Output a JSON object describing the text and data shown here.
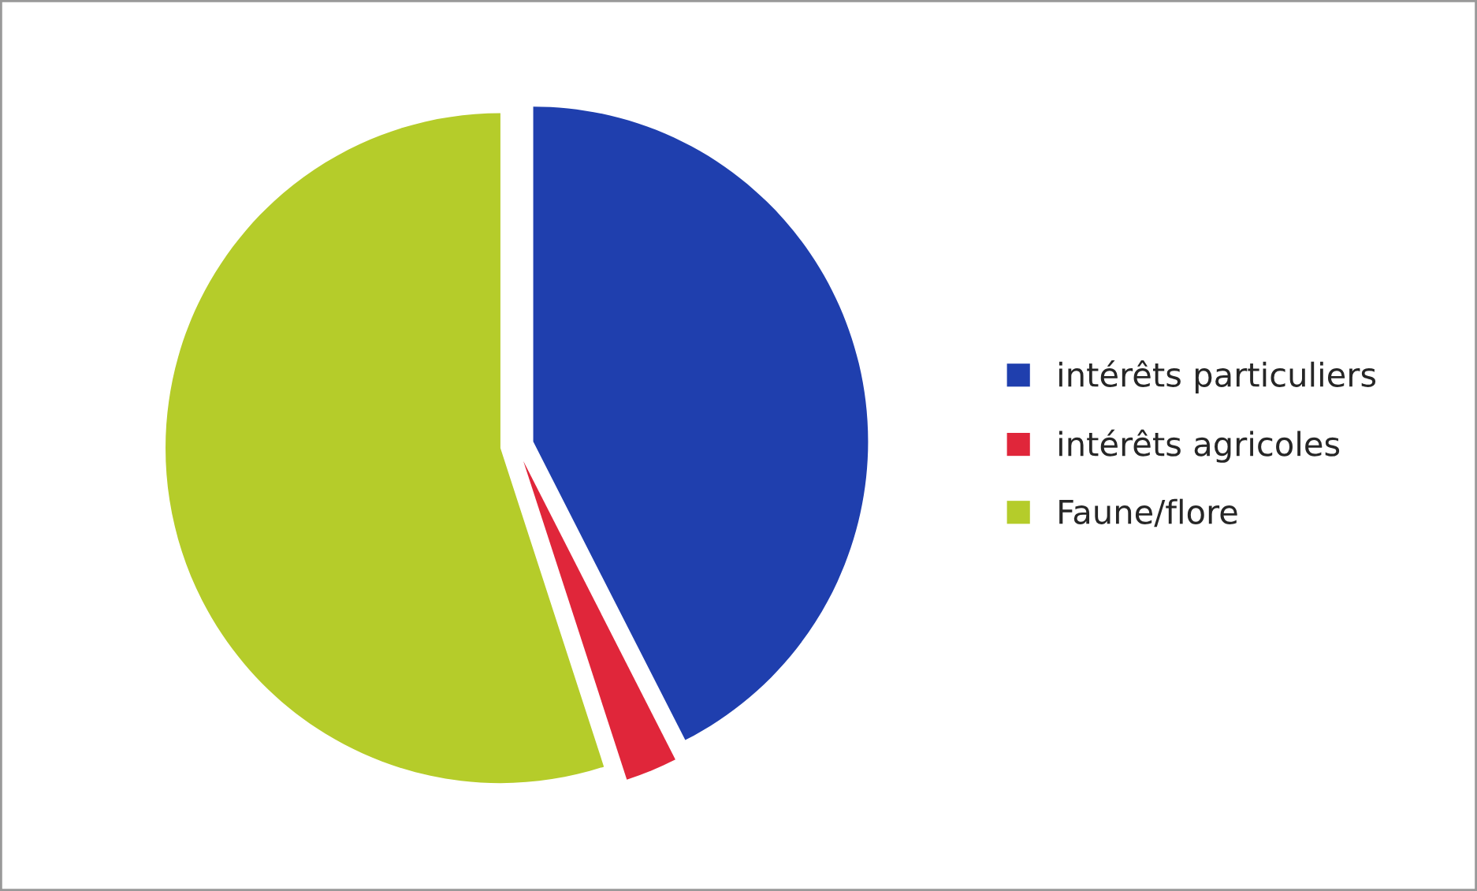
{
  "chart_data": {
    "type": "pie",
    "categories": [
      "intérêts particuliers",
      "intérêts agricoles",
      "Faune/flore"
    ],
    "values": [
      42.5,
      2.5,
      55
    ],
    "colors": [
      "#1f3fae",
      "#e0263a",
      "#b5cc2a"
    ],
    "legend": "right"
  }
}
